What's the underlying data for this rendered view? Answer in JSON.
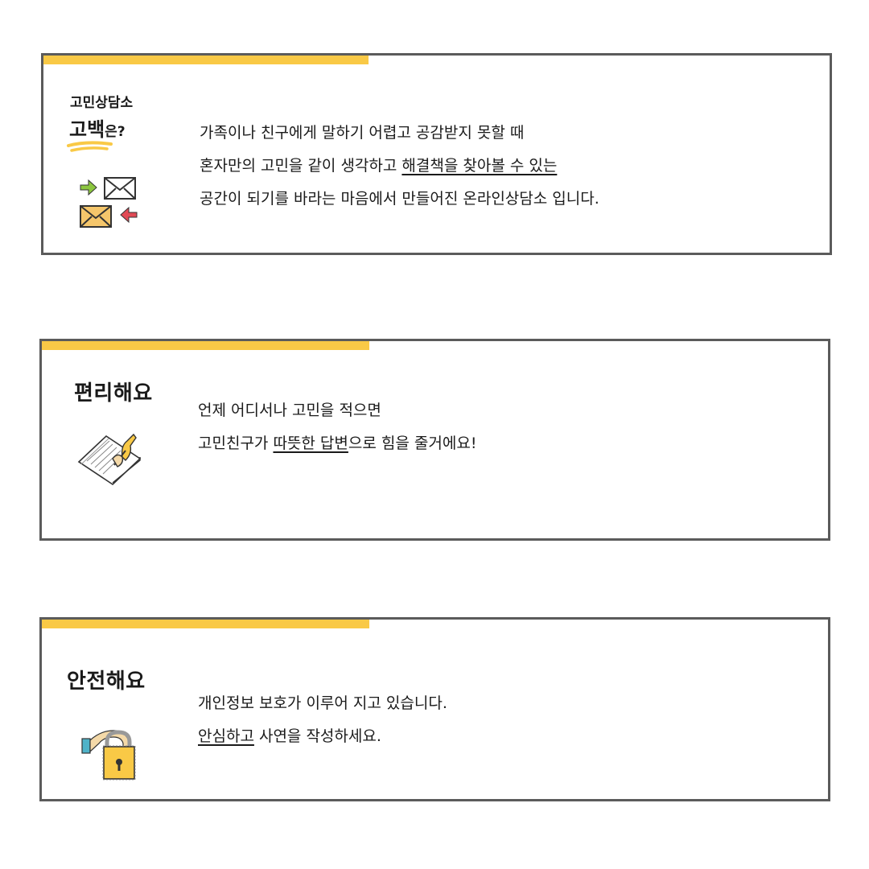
{
  "intro": {
    "title_small": "고민상담소",
    "title_big": "고백",
    "title_suffix": "은?",
    "lines": [
      "가족이나 친구에게 말하기 어렵고 공감받지 못할 때",
      "혼자만의 고민을 같이 생각하고 ",
      "해결책을 찾아볼 수 있는",
      "공간이 되기를 바라는 마음에서 만들어진 온라인상담소 입니다."
    ],
    "icon": "mail-exchange-icon"
  },
  "convenient": {
    "heading": "편리해요",
    "line1": "언제 어디서나 고민을 적으면",
    "line2_pre": "고민친구가 ",
    "line2_u": "따뜻한 답변",
    "line2_post": "으로 힘을 줄거에요!",
    "icon": "writing-hand-icon"
  },
  "safe": {
    "heading": "안전해요",
    "line1": "개인정보 보호가 이루어 지고 있습니다.",
    "line2_u": "안심하고",
    "line2_post": " 사연을 작성하세요.",
    "icon": "padlock-hand-icon"
  },
  "colors": {
    "accent": "#f9c946",
    "border": "#5b5b5b"
  }
}
